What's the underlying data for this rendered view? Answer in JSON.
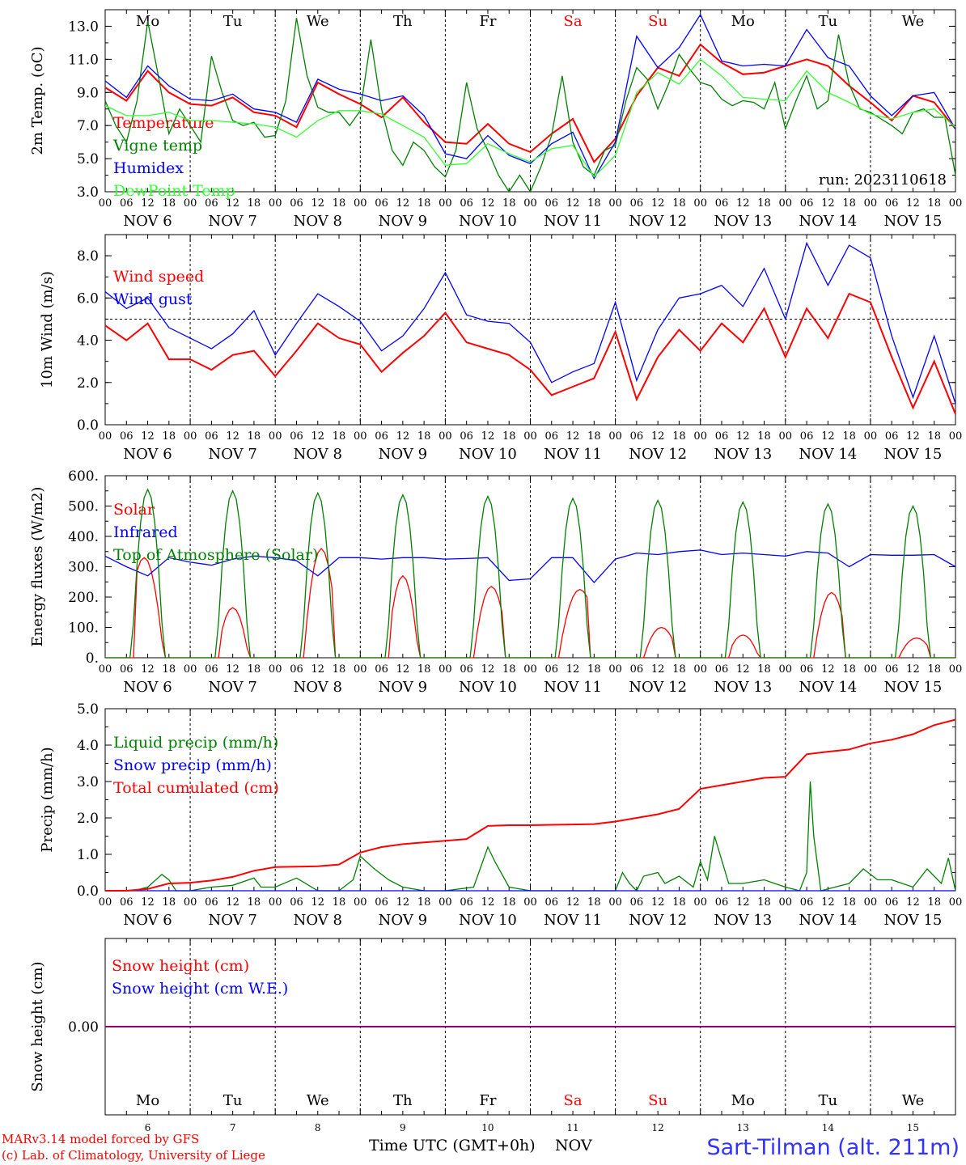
{
  "footer": {
    "model_line": "MARv3.14 model forced by GFS",
    "copyright_line": "(c) Lab. of Climatology, University of Liege",
    "time_axis_label": "Time UTC (GMT+0h)",
    "month_label": "NOV",
    "station": "Sart-Tilman (alt. 211m)"
  },
  "day_names": [
    "Mo",
    "Tu",
    "We",
    "Th",
    "Fr",
    "Sa",
    "Su",
    "Mo",
    "Tu",
    "We"
  ],
  "weekend_flags": [
    false,
    false,
    false,
    false,
    false,
    true,
    true,
    false,
    false,
    false
  ],
  "date_labels": [
    "NOV 6",
    "NOV 7",
    "NOV 8",
    "NOV 9",
    "NOV 10",
    "NOV 11",
    "NOV 12",
    "NOV 13",
    "NOV 14",
    "NOV 15"
  ],
  "day_numbers": [
    "6",
    "7",
    "8",
    "9",
    "10",
    "11",
    "12",
    "13",
    "14",
    "15"
  ],
  "hour_ticks": [
    "00",
    "06",
    "12",
    "18"
  ],
  "colors": {
    "red": "#ff0000",
    "green": "#008000",
    "blue": "#0000ff",
    "lightgreen": "#33ff33",
    "purple": "#800080",
    "weekend": "#ff0000"
  },
  "chart_data": [
    {
      "type": "line",
      "ylabel": "2m Temp. (oC)",
      "ylim": [
        3.0,
        14.0
      ],
      "yticks": [
        "3.0",
        "5.0",
        "7.0",
        "9.0",
        "11.0",
        "13.0"
      ],
      "annotation": "run: 2023110618",
      "x_unit": "hours from Nov 6 00 UTC",
      "series": [
        {
          "name": "Temperature",
          "color": "red",
          "x": [
            0,
            6,
            12,
            18,
            24,
            30,
            36,
            42,
            48,
            54,
            60,
            66,
            72,
            78,
            84,
            90,
            96,
            102,
            108,
            114,
            120,
            126,
            132,
            138,
            144,
            150,
            156,
            162,
            168,
            174,
            180,
            186,
            192,
            198,
            204,
            210,
            216,
            222,
            228,
            234,
            240
          ],
          "y": [
            9.3,
            8.5,
            10.3,
            9.0,
            8.3,
            8.2,
            8.7,
            7.8,
            7.6,
            6.9,
            9.6,
            8.9,
            8.3,
            7.5,
            8.7,
            7.2,
            6.0,
            5.9,
            7.1,
            5.9,
            5.4,
            6.5,
            7.4,
            4.8,
            6.2,
            8.8,
            10.5,
            10.0,
            11.9,
            10.8,
            10.1,
            10.2,
            10.6,
            11.0,
            10.6,
            9.4,
            8.4,
            7.3,
            8.8,
            8.4,
            6.8
          ]
        },
        {
          "name": "Vigne temp",
          "color": "green",
          "x": [
            0,
            3,
            6,
            9,
            12,
            15,
            18,
            21,
            24,
            27,
            30,
            33,
            36,
            39,
            42,
            45,
            48,
            51,
            54,
            57,
            60,
            63,
            66,
            69,
            72,
            75,
            78,
            81,
            84,
            87,
            90,
            93,
            96,
            99,
            102,
            105,
            108,
            111,
            114,
            117,
            120,
            123,
            126,
            129,
            132,
            135,
            138,
            141,
            144,
            147,
            150,
            153,
            156,
            159,
            162,
            165,
            168,
            171,
            174,
            177,
            180,
            183,
            186,
            189,
            192,
            195,
            198,
            201,
            204,
            207,
            210,
            213,
            216,
            219,
            222,
            225,
            228,
            231,
            234,
            237,
            240
          ],
          "y": [
            8.5,
            7.0,
            6.0,
            8.5,
            13.3,
            10.0,
            6.5,
            8.0,
            7.0,
            6.0,
            11.2,
            9.0,
            7.3,
            7.0,
            7.2,
            6.3,
            6.4,
            8.5,
            13.5,
            10.0,
            8.1,
            7.8,
            7.8,
            7.0,
            7.9,
            12.2,
            8.0,
            5.5,
            4.6,
            6.0,
            5.5,
            4.5,
            3.9,
            5.5,
            9.6,
            6.8,
            5.5,
            4.0,
            1.5,
            4.0,
            1.5,
            4.5,
            6.4,
            10.0,
            6.0,
            4.5,
            4.0,
            5.5,
            5.8,
            8.5,
            10.5,
            9.8,
            8.0,
            9.5,
            11.3,
            10.4,
            9.6,
            9.4,
            8.6,
            8.2,
            8.5,
            8.4,
            8.0,
            9.6,
            6.8,
            8.5,
            10.0,
            8.0,
            8.5,
            12.5,
            9.5,
            8.0,
            7.8,
            7.4,
            7.0,
            6.5,
            7.8,
            8.0,
            7.5,
            7.5,
            4.0
          ]
        },
        {
          "name": "Humidex",
          "color": "blue",
          "x": [
            0,
            6,
            12,
            18,
            24,
            30,
            36,
            42,
            48,
            54,
            60,
            66,
            72,
            78,
            84,
            90,
            96,
            102,
            108,
            114,
            120,
            126,
            132,
            138,
            144,
            150,
            156,
            162,
            168,
            174,
            180,
            186,
            192,
            198,
            204,
            210,
            216,
            222,
            228,
            234,
            240
          ],
          "y": [
            9.7,
            8.7,
            10.6,
            9.4,
            8.6,
            8.5,
            8.9,
            8.0,
            7.8,
            7.2,
            9.8,
            9.2,
            8.9,
            8.5,
            8.8,
            7.6,
            5.3,
            5.0,
            6.4,
            5.2,
            4.7,
            5.9,
            6.6,
            3.8,
            6.0,
            12.4,
            10.5,
            11.7,
            13.7,
            10.9,
            10.6,
            10.7,
            10.6,
            12.8,
            11.1,
            10.6,
            8.8,
            7.6,
            8.8,
            9.0,
            6.8
          ]
        },
        {
          "name": "DewPoint Temp",
          "color": "lightgreen",
          "x": [
            0,
            6,
            12,
            18,
            24,
            30,
            36,
            42,
            48,
            54,
            60,
            66,
            72,
            78,
            84,
            90,
            96,
            102,
            108,
            114,
            120,
            126,
            132,
            138,
            144,
            150,
            156,
            162,
            168,
            174,
            180,
            186,
            192,
            198,
            204,
            210,
            216,
            222,
            228,
            234,
            240
          ],
          "y": [
            8.2,
            7.6,
            7.6,
            7.8,
            7.3,
            7.3,
            7.2,
            7.1,
            6.9,
            6.3,
            7.3,
            7.9,
            7.9,
            7.7,
            7.0,
            6.3,
            4.6,
            4.7,
            5.9,
            5.3,
            4.8,
            5.6,
            5.8,
            3.9,
            5.2,
            9.0,
            10.2,
            9.5,
            11.0,
            10.0,
            8.7,
            8.6,
            8.5,
            10.3,
            9.0,
            8.4,
            7.7,
            7.4,
            7.8,
            8.0,
            6.9
          ]
        }
      ]
    },
    {
      "type": "line",
      "ylabel": "10m Wind (m/s)",
      "ylim": [
        0.0,
        9.0
      ],
      "yticks": [
        "0.0",
        "2.0",
        "4.0",
        "6.0",
        "8.0"
      ],
      "reference_line": 5.0,
      "series": [
        {
          "name": "Wind speed",
          "color": "red",
          "x": [
            0,
            6,
            12,
            18,
            24,
            30,
            36,
            42,
            48,
            54,
            60,
            66,
            72,
            78,
            84,
            90,
            96,
            102,
            108,
            114,
            120,
            126,
            132,
            138,
            144,
            150,
            156,
            162,
            168,
            174,
            180,
            186,
            192,
            198,
            204,
            210,
            216,
            222,
            228,
            234,
            240
          ],
          "y": [
            4.7,
            4.0,
            4.8,
            3.1,
            3.1,
            2.6,
            3.3,
            3.5,
            2.3,
            3.5,
            4.8,
            4.1,
            3.8,
            2.5,
            3.4,
            4.2,
            5.3,
            3.9,
            3.6,
            3.3,
            2.6,
            1.4,
            1.8,
            2.2,
            4.4,
            1.2,
            3.2,
            4.5,
            3.5,
            4.8,
            3.9,
            5.5,
            3.2,
            5.5,
            4.1,
            6.2,
            5.8,
            3.2,
            0.8,
            3.0,
            0.5
          ]
        },
        {
          "name": "Wind gust",
          "color": "blue",
          "x": [
            0,
            6,
            12,
            18,
            24,
            30,
            36,
            42,
            48,
            54,
            60,
            66,
            72,
            78,
            84,
            90,
            96,
            102,
            108,
            114,
            120,
            126,
            132,
            138,
            144,
            150,
            156,
            162,
            168,
            174,
            180,
            186,
            192,
            198,
            204,
            210,
            216,
            222,
            228,
            234,
            240
          ],
          "y": [
            6.3,
            5.5,
            6.0,
            4.6,
            4.1,
            3.6,
            4.3,
            5.4,
            3.3,
            4.8,
            6.2,
            5.6,
            4.9,
            3.5,
            4.2,
            5.5,
            7.2,
            5.2,
            4.9,
            4.8,
            3.9,
            2.0,
            2.5,
            2.9,
            5.8,
            2.1,
            4.5,
            6.0,
            6.2,
            6.6,
            5.6,
            7.4,
            5.0,
            8.6,
            6.6,
            8.5,
            7.9,
            4.2,
            1.3,
            4.2,
            1.0
          ]
        }
      ]
    },
    {
      "type": "line",
      "ylabel": "Energy fluxes (W/m2)",
      "ylim": [
        0,
        600
      ],
      "yticks": [
        "0.",
        "100.",
        "200.",
        "300.",
        "400.",
        "500.",
        "600."
      ],
      "series": [
        {
          "name": "Solar",
          "color": "red",
          "peaks": [
            330,
            165,
            360,
            270,
            235,
            225,
            100,
            75,
            215,
            65
          ],
          "peak_hour": [
            11,
            12,
            13,
            12,
            13,
            14,
            13,
            12,
            13,
            13
          ]
        },
        {
          "name": "Infrared",
          "color": "blue",
          "x": [
            0,
            6,
            12,
            18,
            24,
            30,
            36,
            42,
            48,
            54,
            60,
            66,
            72,
            78,
            84,
            90,
            96,
            102,
            108,
            114,
            120,
            126,
            132,
            138,
            144,
            150,
            156,
            162,
            168,
            174,
            180,
            186,
            192,
            198,
            204,
            210,
            216,
            222,
            228,
            234,
            240
          ],
          "y": [
            335,
            300,
            270,
            330,
            315,
            305,
            325,
            335,
            330,
            320,
            270,
            330,
            330,
            325,
            330,
            330,
            325,
            327,
            330,
            255,
            260,
            330,
            330,
            248,
            325,
            345,
            340,
            350,
            355,
            340,
            345,
            340,
            335,
            350,
            345,
            300,
            340,
            338,
            338,
            340,
            300
          ]
        },
        {
          "name": "Top of Atmosphere (Solar)",
          "color": "green",
          "peaks": [
            555,
            550,
            543,
            537,
            532,
            525,
            519,
            513,
            507,
            500
          ]
        }
      ]
    },
    {
      "type": "line",
      "ylabel": "Precip (mm/h)",
      "ylim": [
        0.0,
        5.0
      ],
      "yticks": [
        "0.0",
        "1.0",
        "2.0",
        "3.0",
        "4.0",
        "5.0"
      ],
      "series": [
        {
          "name": "Liquid precip (mm/h)",
          "color": "green",
          "x": [
            0,
            8,
            12,
            16,
            18,
            20,
            24,
            30,
            36,
            42,
            44,
            48,
            54,
            60,
            66,
            70,
            72,
            76,
            80,
            84,
            90,
            96,
            104,
            108,
            110,
            114,
            120,
            132,
            144,
            146,
            148,
            150,
            152,
            156,
            158,
            162,
            166,
            168,
            170,
            172,
            176,
            180,
            186,
            192,
            196,
            198,
            199,
            200,
            202,
            204,
            210,
            214,
            218,
            222,
            228,
            232,
            236,
            238,
            240
          ],
          "y": [
            0.0,
            0.0,
            0.1,
            0.45,
            0.3,
            0.0,
            0.0,
            0.1,
            0.15,
            0.35,
            0.1,
            0.1,
            0.35,
            0.0,
            0.0,
            0.3,
            0.95,
            0.6,
            0.3,
            0.1,
            0.0,
            0.0,
            0.1,
            1.2,
            0.8,
            0.1,
            0.0,
            0.0,
            0.0,
            0.5,
            0.2,
            0.0,
            0.4,
            0.5,
            0.2,
            0.4,
            0.1,
            0.8,
            0.3,
            1.5,
            0.2,
            0.2,
            0.3,
            0.1,
            0.0,
            0.5,
            3.0,
            1.5,
            0.0,
            0.05,
            0.2,
            0.6,
            0.3,
            0.3,
            0.1,
            0.6,
            0.2,
            0.9,
            0.0
          ]
        },
        {
          "name": "Snow precip (mm/h)",
          "color": "blue",
          "x": [
            0,
            240
          ],
          "y": [
            0.0,
            0.0
          ]
        },
        {
          "name": "Total cumulated (cm)",
          "color": "red",
          "x": [
            0,
            6,
            12,
            18,
            24,
            30,
            36,
            42,
            48,
            54,
            60,
            66,
            72,
            78,
            84,
            90,
            96,
            102,
            108,
            114,
            120,
            126,
            132,
            138,
            144,
            150,
            156,
            162,
            168,
            174,
            180,
            186,
            192,
            198,
            204,
            210,
            216,
            222,
            228,
            234,
            240
          ],
          "y": [
            0.0,
            0.0,
            0.05,
            0.2,
            0.22,
            0.28,
            0.38,
            0.55,
            0.65,
            0.66,
            0.67,
            0.72,
            1.05,
            1.2,
            1.28,
            1.33,
            1.37,
            1.42,
            1.78,
            1.8,
            1.8,
            1.81,
            1.82,
            1.83,
            1.9,
            2.0,
            2.1,
            2.25,
            2.8,
            2.9,
            3.0,
            3.1,
            3.13,
            3.75,
            3.82,
            3.88,
            4.05,
            4.15,
            4.3,
            4.55,
            4.7
          ]
        }
      ]
    },
    {
      "type": "line",
      "ylabel": "Snow height (cm)",
      "ylim": [
        -1,
        1
      ],
      "yticks": [
        "0.00"
      ],
      "series": [
        {
          "name": "Snow height (cm)",
          "color": "red",
          "x": [
            0,
            240
          ],
          "y": [
            0,
            0
          ]
        },
        {
          "name": "Snow height (cm W.E.)",
          "color": "blue",
          "x": [
            0,
            240
          ],
          "y": [
            0,
            0
          ]
        }
      ]
    }
  ]
}
